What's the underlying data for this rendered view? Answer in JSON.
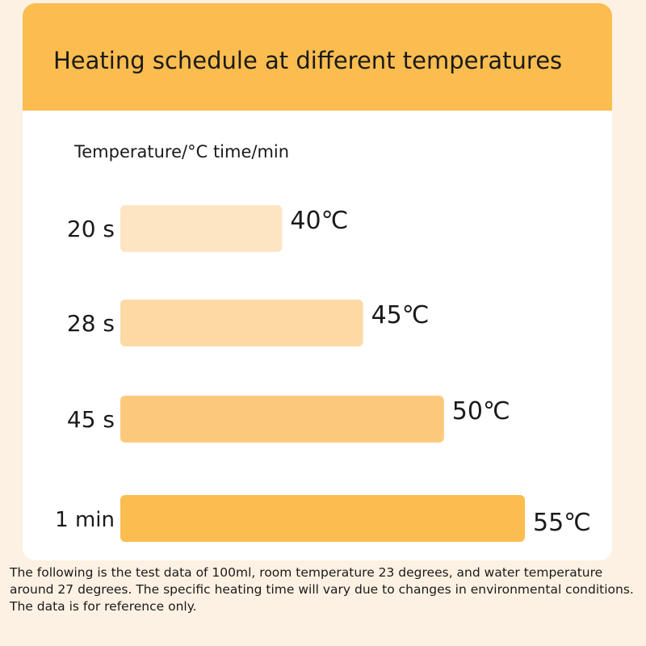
{
  "title": "Heating schedule at different temperatures",
  "axis_header": "Temperature/°C time/min",
  "footnote": "The following is the test data of 100ml, room temperature 23 degrees, and water temperature around 27 degrees. The specific heating time will vary due to changes in environmental conditions. The data is for reference only.",
  "colors": {
    "header": "#fbbd4f",
    "background": "#fdf1e3",
    "bars": [
      "#fde5c3",
      "#fdd9a3",
      "#fcc97c",
      "#fbbd4f"
    ]
  },
  "chart_data": {
    "type": "bar",
    "orientation": "horizontal",
    "categories": [
      "20 s",
      "28 s",
      "45 s",
      "1 min"
    ],
    "values": [
      40,
      45,
      50,
      55
    ],
    "value_labels": [
      "40℃",
      "45℃",
      "50℃",
      "55℃"
    ],
    "xlim": [
      30,
      55
    ]
  }
}
